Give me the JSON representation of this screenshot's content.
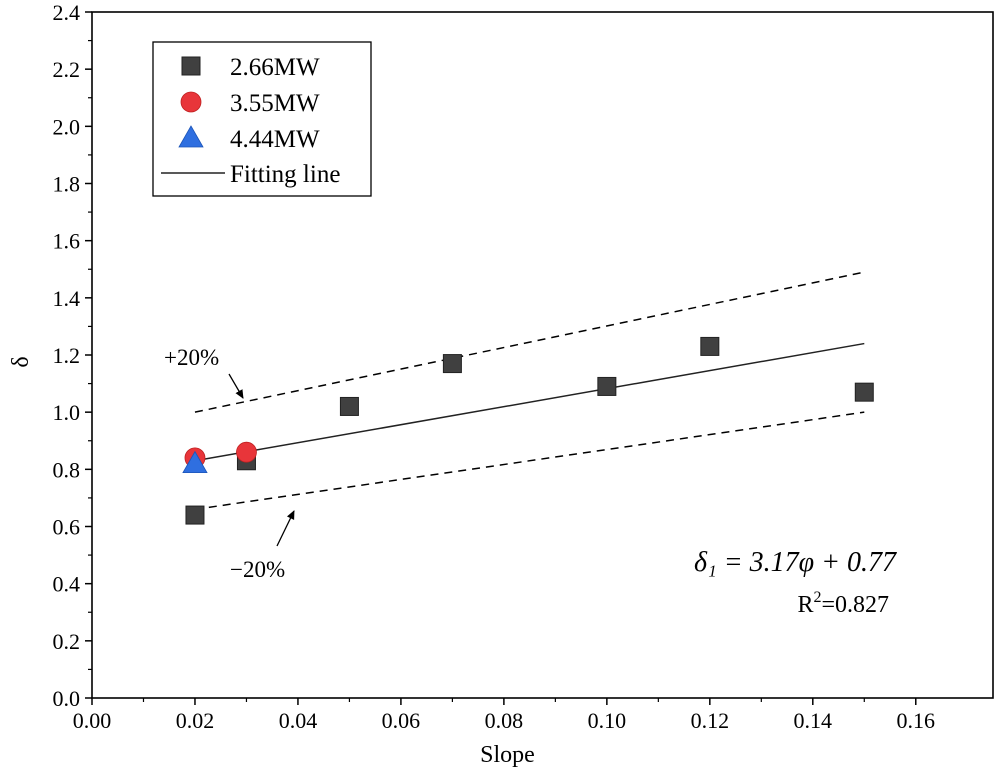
{
  "chart_data": {
    "type": "scatter",
    "title": "",
    "xlabel": "Slope",
    "ylabel": "δ",
    "xlim": [
      0.0,
      0.175
    ],
    "ylim": [
      0.0,
      2.4
    ],
    "xticks": [
      0.0,
      0.02,
      0.04,
      0.06,
      0.08,
      0.1,
      0.12,
      0.14,
      0.16
    ],
    "xtick_labels": [
      "0.00",
      "0.02",
      "0.04",
      "0.06",
      "0.08",
      "0.10",
      "0.12",
      "0.14",
      "0.16"
    ],
    "yticks": [
      0.0,
      0.2,
      0.4,
      0.6,
      0.8,
      1.0,
      1.2,
      1.4,
      1.6,
      1.8,
      2.0,
      2.2,
      2.4
    ],
    "ytick_labels": [
      "0.0",
      "0.2",
      "0.4",
      "0.6",
      "0.8",
      "1.0",
      "1.2",
      "1.4",
      "1.6",
      "1.8",
      "2.0",
      "2.2",
      "2.4"
    ],
    "grid": false,
    "legend_position": "top-left",
    "series": [
      {
        "name": "2.66MW",
        "marker": "square",
        "color": "#404040",
        "x": [
          0.02,
          0.03,
          0.05,
          0.07,
          0.1,
          0.12,
          0.15
        ],
        "y": [
          0.64,
          0.83,
          1.02,
          1.17,
          1.09,
          1.23,
          1.07
        ]
      },
      {
        "name": "3.55MW",
        "marker": "circle",
        "color": "#e8353a",
        "x": [
          0.02,
          0.03
        ],
        "y": [
          0.84,
          0.86
        ]
      },
      {
        "name": "4.44MW",
        "marker": "triangle",
        "color": "#2f6fe0",
        "x": [
          0.02
        ],
        "y": [
          0.82
        ]
      }
    ],
    "fit_line": {
      "name": "Fitting line",
      "color": "#222222",
      "x": [
        0.02,
        0.15
      ],
      "y": [
        0.83,
        1.24
      ]
    },
    "bounds": [
      {
        "label": "+20%",
        "x": [
          0.02,
          0.15
        ],
        "y": [
          1.0,
          1.49
        ]
      },
      {
        "label": "−20%",
        "x": [
          0.02,
          0.15
        ],
        "y": [
          0.66,
          1.0
        ]
      }
    ],
    "annotations": {
      "upper": {
        "label": "+20%"
      },
      "lower": {
        "label": "−20%"
      },
      "equation": "δ₁ = 3.17φ + 0.77",
      "r2_prefix": "R",
      "r2_sup": "2",
      "r2_value": "=0.827"
    }
  }
}
